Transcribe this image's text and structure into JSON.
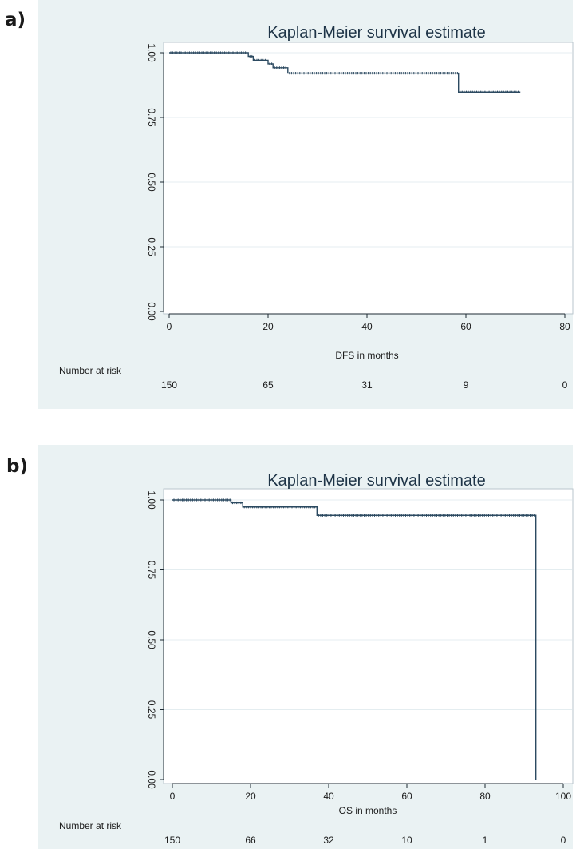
{
  "panels": [
    {
      "label": "a)"
    },
    {
      "label": "b)"
    }
  ],
  "chart_data": [
    {
      "type": "line",
      "title": "Kaplan-Meier survival estimate",
      "xlabel": "DFS in months",
      "ylabel": "",
      "xlim": [
        0,
        80
      ],
      "ylim": [
        0,
        1
      ],
      "xticks": [
        0,
        20,
        40,
        60,
        80
      ],
      "yticks": [
        0,
        0.25,
        0.5,
        0.75,
        1
      ],
      "ytick_labels": [
        "0.00",
        "0.25",
        "0.50",
        "0.75",
        "1.00"
      ],
      "grid": true,
      "series": [
        {
          "x": [
            0,
            16,
            17,
            20,
            21,
            22,
            24,
            58.5,
            71
          ],
          "y": [
            1.0,
            0.986,
            0.971,
            0.957,
            0.942,
            0.942,
            0.921,
            0.848,
            0.848
          ]
        }
      ],
      "risk_table": {
        "label": "Number at risk",
        "times": [
          0,
          20,
          40,
          60,
          80
        ],
        "counts": [
          "150",
          "65",
          "31",
          "9",
          "0"
        ]
      }
    },
    {
      "type": "line",
      "title": "Kaplan-Meier survival estimate",
      "xlabel": "OS in months",
      "ylabel": "",
      "xlim": [
        0,
        100
      ],
      "ylim": [
        0,
        1
      ],
      "xticks": [
        0,
        20,
        40,
        60,
        80,
        100
      ],
      "yticks": [
        0,
        0.25,
        0.5,
        0.75,
        1
      ],
      "ytick_labels": [
        "0.00",
        "0.25",
        "0.50",
        "0.75",
        "1.00"
      ],
      "grid": true,
      "series": [
        {
          "x": [
            0,
            15,
            18,
            37,
            93,
            93
          ],
          "y": [
            1.0,
            0.99,
            0.975,
            0.945,
            0.945,
            0.0
          ]
        }
      ],
      "risk_table": {
        "label": "Number at risk",
        "times": [
          0,
          20,
          40,
          60,
          80,
          100
        ],
        "counts": [
          "150",
          "66",
          "32",
          "10",
          "1",
          "0"
        ]
      }
    }
  ]
}
